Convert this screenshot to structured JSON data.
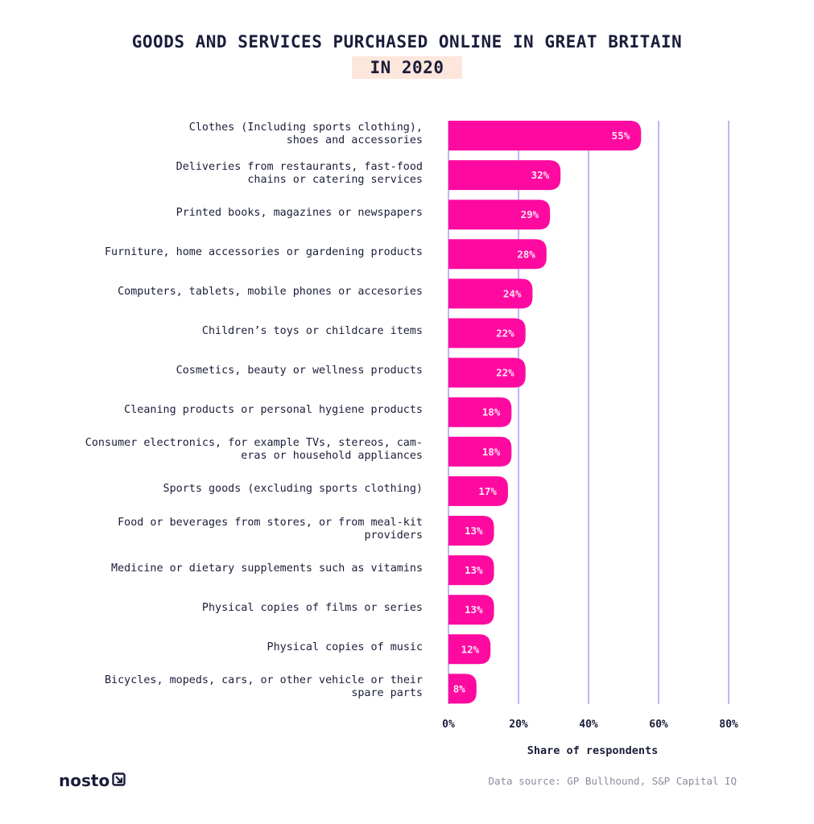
{
  "title": {
    "line1": "GOODS AND SERVICES PURCHASED ONLINE IN GREAT BRITAIN",
    "line2": "IN 2020"
  },
  "chart_data": {
    "type": "bar",
    "orientation": "horizontal",
    "categories": [
      [
        "Clothes (Including sports clothing),",
        "shoes and accessories"
      ],
      [
        "Deliveries from restaurants, fast-food",
        "chains or catering services"
      ],
      [
        "Printed books, magazines or newspapers"
      ],
      [
        "Furniture, home accessories or gardening products"
      ],
      [
        "Computers, tablets, mobile phones or accesories"
      ],
      [
        "Children’s toys or childcare items"
      ],
      [
        "Cosmetics, beauty or wellness products"
      ],
      [
        "Cleaning products or personal hygiene products"
      ],
      [
        "Consumer electronics, for example TVs, stereos, cam-",
        "eras or household appliances"
      ],
      [
        "Sports goods (excluding sports clothing)"
      ],
      [
        "Food or beverages from stores, or from meal-kit",
        "providers"
      ],
      [
        "Medicine or dietary supplements such as vitamins"
      ],
      [
        "Physical copies of films or series"
      ],
      [
        "Physical copies of music"
      ],
      [
        "Bicycles, mopeds, cars, or other vehicle or their",
        "spare parts"
      ]
    ],
    "values": [
      55,
      32,
      29,
      28,
      24,
      22,
      22,
      18,
      18,
      17,
      13,
      13,
      13,
      12,
      8
    ],
    "value_labels": [
      "55%",
      "32%",
      "29%",
      "28%",
      "24%",
      "22%",
      "22%",
      "18%",
      "18%",
      "17%",
      "13%",
      "13%",
      "13%",
      "12%",
      "8%"
    ],
    "xlim": [
      0,
      80
    ],
    "xticks": [
      0,
      20,
      40,
      60,
      80
    ],
    "xtick_labels": [
      "0%",
      "20%",
      "40%",
      "60%",
      "80%"
    ],
    "xlabel": "Share of respondents",
    "grid": "vertical",
    "bar_color": "#ff0aa0",
    "grid_color": "#7b6cf0",
    "label_color": "#fde6f3"
  },
  "footer": {
    "logo": "nosto",
    "logo_icon": "arrow-box-icon",
    "source": "Data source: GP Bullhound, S&P Capital IQ"
  }
}
